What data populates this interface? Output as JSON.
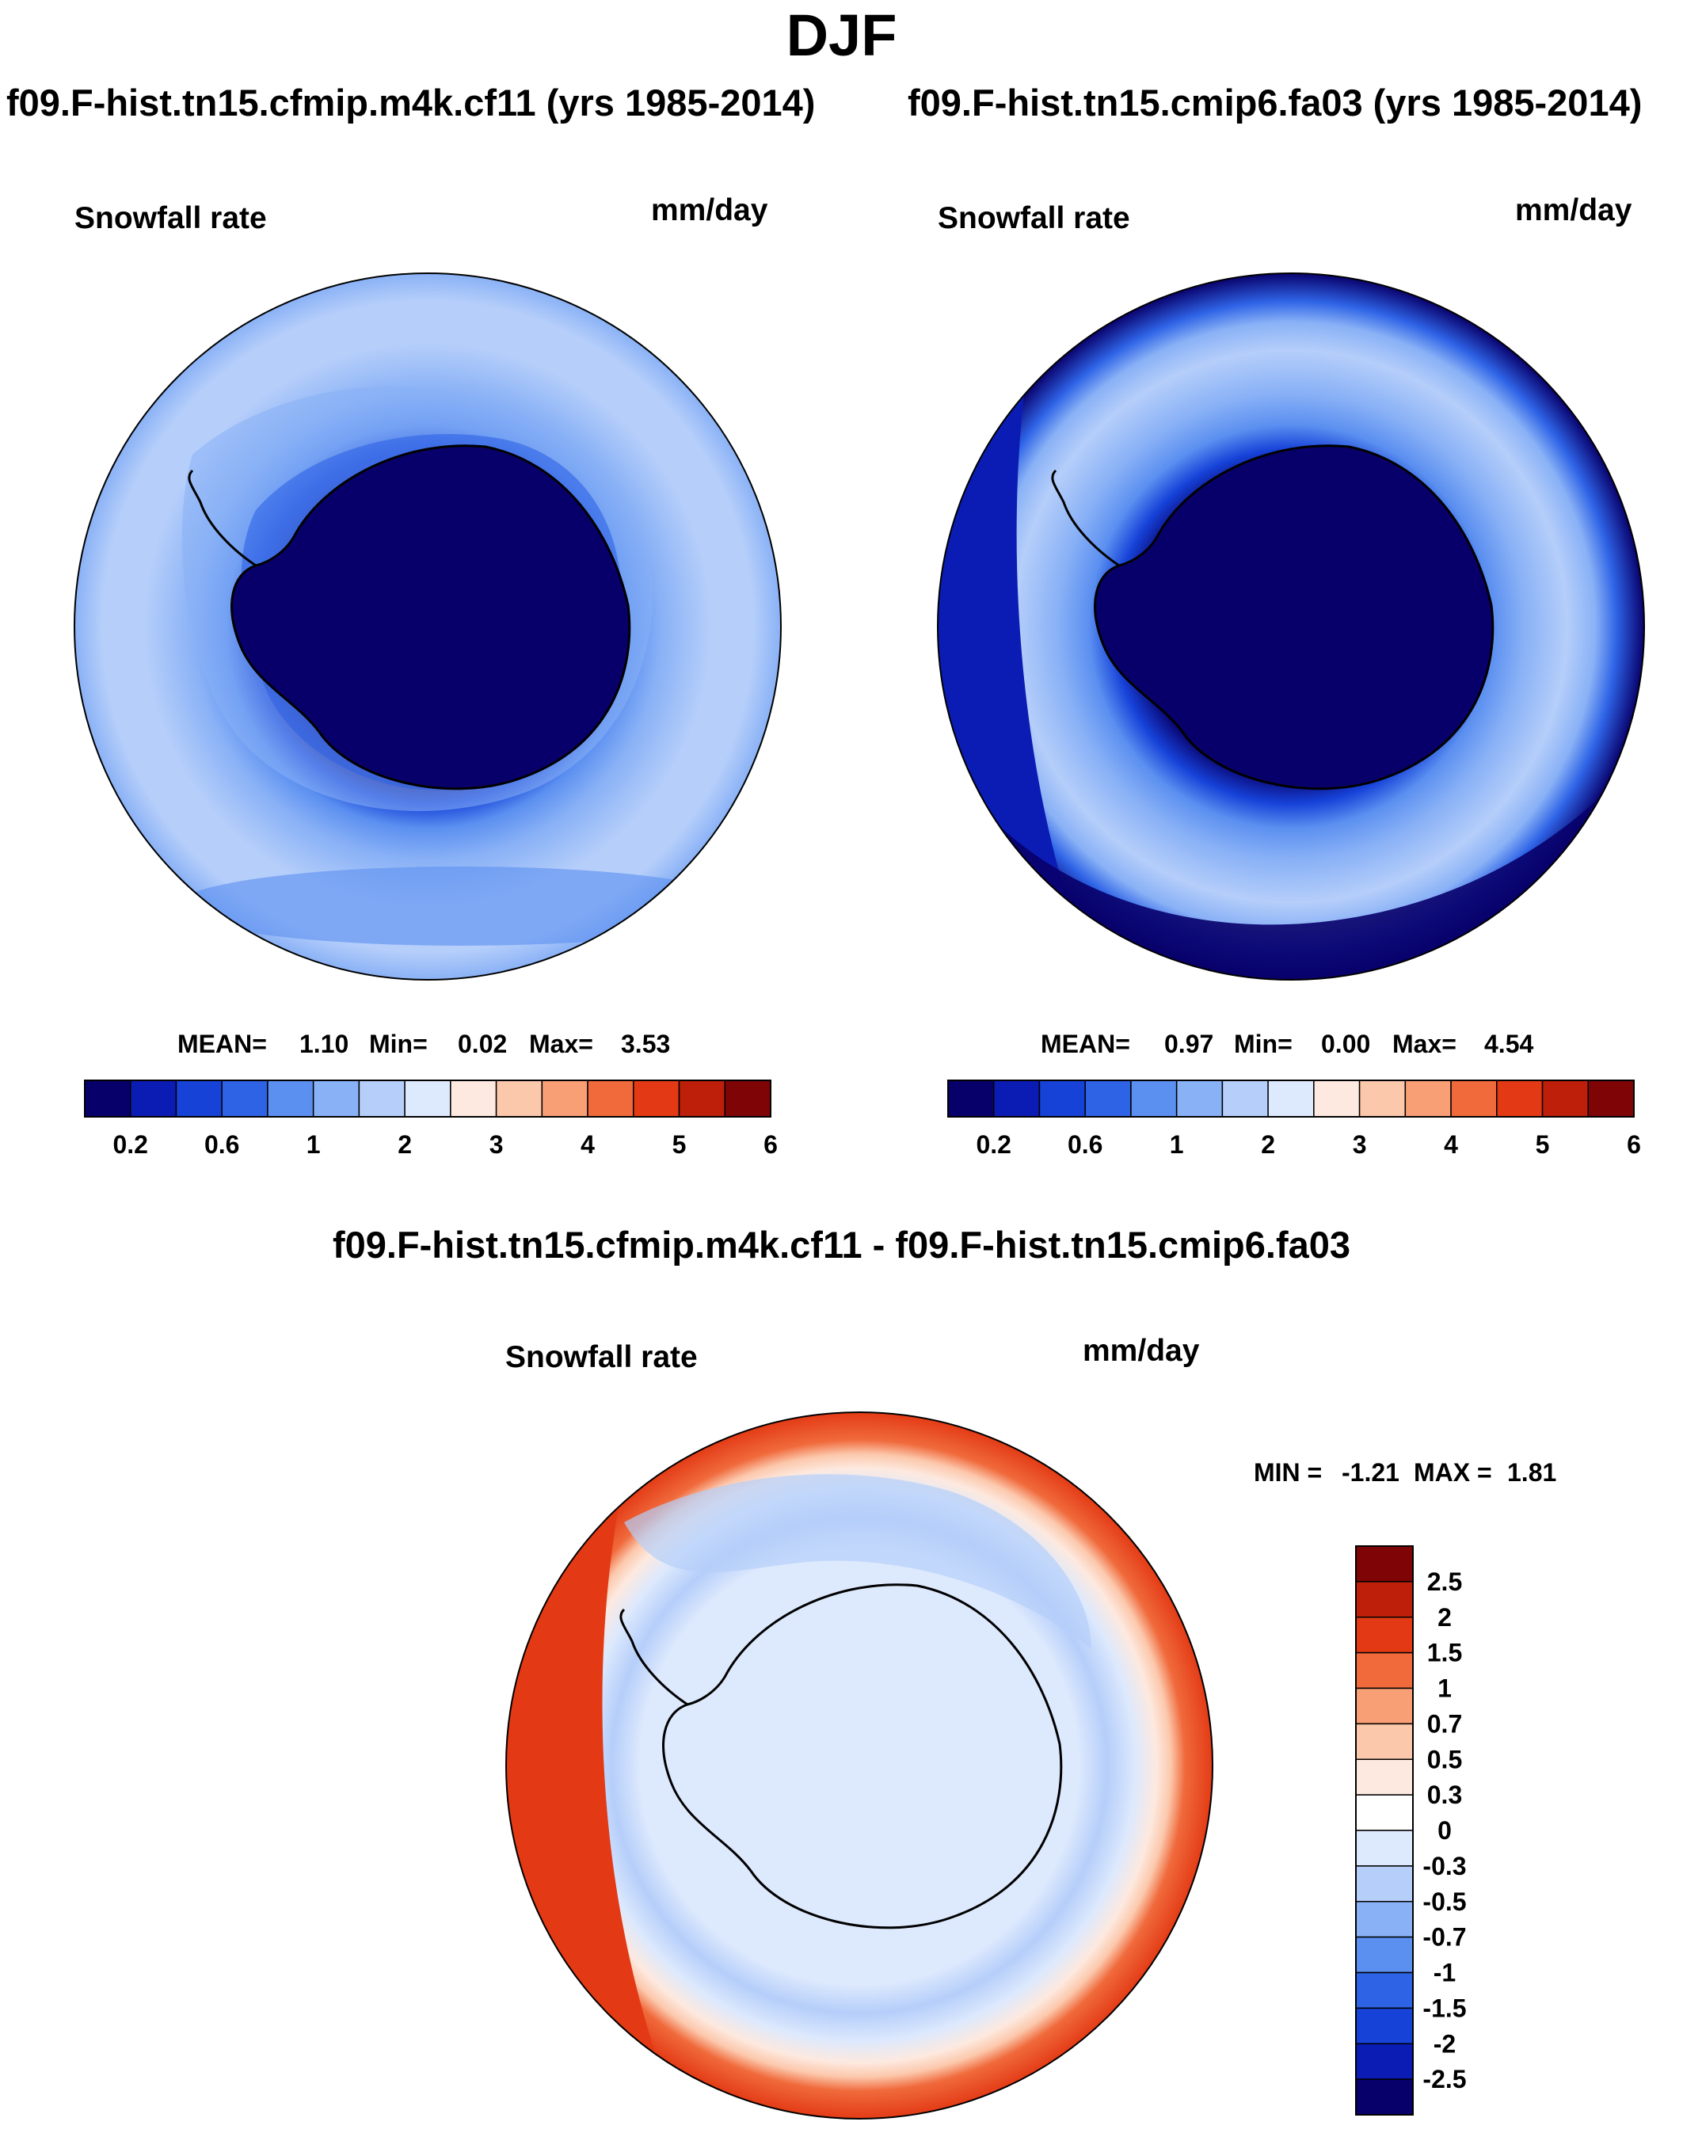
{
  "title": "DJF",
  "chart_data": [
    {
      "type": "heatmap",
      "title": "f09.F-hist.tn15.cfmip.m4k.cf11 (yrs 1985-2014)",
      "variable": "Snowfall rate",
      "units": "mm/day",
      "stats": {
        "mean_label": "MEAN=",
        "mean": "1.10",
        "min_label": "Min=",
        "min": "0.02",
        "max_label": "Max=",
        "max": "3.53"
      },
      "levels": [
        "0.2",
        "0.6",
        "1",
        "2",
        "3",
        "4",
        "5",
        "6"
      ],
      "colors": [
        "#08006a",
        "#0a1cb4",
        "#1642d8",
        "#2e63e6",
        "#5b8ff0",
        "#89b1f6",
        "#b5cefa",
        "#dde9fd",
        "#fde9df",
        "#fcc8ac",
        "#f99f76",
        "#f06a3c",
        "#e33a15",
        "#bd1f0b",
        "#7f0406"
      ]
    },
    {
      "type": "heatmap",
      "title": "f09.F-hist.tn15.cmip6.fa03 (yrs 1985-2014)",
      "variable": "Snowfall rate",
      "units": "mm/day",
      "stats": {
        "mean_label": "MEAN=",
        "mean": "0.97",
        "min_label": "Min=",
        "min": "0.00",
        "max_label": "Max=",
        "max": "4.54"
      },
      "levels": [
        "0.2",
        "0.6",
        "1",
        "2",
        "3",
        "4",
        "5",
        "6"
      ],
      "colors": [
        "#08006a",
        "#0a1cb4",
        "#1642d8",
        "#2e63e6",
        "#5b8ff0",
        "#89b1f6",
        "#b5cefa",
        "#dde9fd",
        "#fde9df",
        "#fcc8ac",
        "#f99f76",
        "#f06a3c",
        "#e33a15",
        "#bd1f0b",
        "#7f0406"
      ]
    },
    {
      "type": "heatmap",
      "title": "f09.F-hist.tn15.cfmip.m4k.cf11 - f09.F-hist.tn15.cmip6.fa03",
      "variable": "Snowfall rate",
      "units": "mm/day",
      "stats": {
        "min_label": "MIN =",
        "min": "-1.21",
        "max_label": "MAX =",
        "max": "1.81"
      },
      "levels": [
        "2.5",
        "2",
        "1.5",
        "1",
        "0.7",
        "0.5",
        "0.3",
        "0",
        "-0.3",
        "-0.5",
        "-0.7",
        "-1",
        "-1.5",
        "-2",
        "-2.5"
      ],
      "colors": [
        "#7f0406",
        "#bd1f0b",
        "#e33a15",
        "#f06a3c",
        "#f99f76",
        "#fcc8ac",
        "#fde9df",
        "#ffffff",
        "#dde9fd",
        "#b5cefa",
        "#89b1f6",
        "#5b8ff0",
        "#2e63e6",
        "#1642d8",
        "#0a1cb4",
        "#08006a"
      ]
    }
  ]
}
